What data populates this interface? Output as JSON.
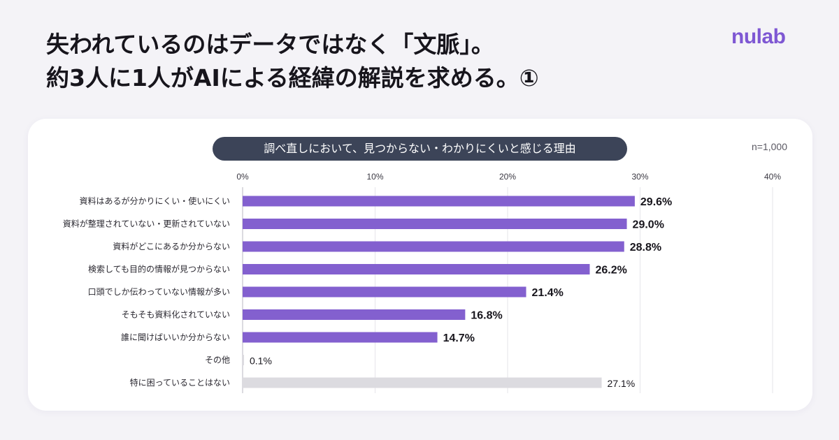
{
  "headline": {
    "line1": "失われているのはデータではなく「文脈」。",
    "line2": "約3人に1人がAIによる経緯の解説を求める。①"
  },
  "logo": {
    "text": "nulab"
  },
  "chart_data": {
    "type": "bar",
    "orientation": "horizontal",
    "title": "調べ直しにおいて、見つからない・わかりにくいと感じる理由",
    "sample_size": "n=1,000",
    "xlim": [
      0,
      40
    ],
    "xticks": [
      "0%",
      "10%",
      "20%",
      "30%",
      "40%"
    ],
    "grid": true,
    "categories": [
      "資料はあるが分かりにくい・使いにくい",
      "資料が整理されていない・更新されていない",
      "資料がどこにあるか分からない",
      "検索しても目的の情報が見つからない",
      "口頭でしか伝わっていない情報が多い",
      "そもそも資料化されていない",
      "誰に聞けばいいか分からない",
      "その他",
      "特に困っていることはない"
    ],
    "values": [
      29.6,
      29.0,
      28.8,
      26.2,
      21.4,
      16.8,
      14.7,
      0.1,
      27.1
    ],
    "value_labels": [
      "29.6%",
      "29.0%",
      "28.8%",
      "26.2%",
      "21.4%",
      "16.8%",
      "14.7%",
      "0.1%",
      "27.1%"
    ],
    "bar_colors": [
      "#8360cf",
      "#8360cf",
      "#8360cf",
      "#8360cf",
      "#8360cf",
      "#8360cf",
      "#8360cf",
      "#dcdbe0",
      "#dcdbe0"
    ],
    "emphasized": [
      true,
      true,
      true,
      true,
      true,
      true,
      true,
      false,
      false
    ]
  }
}
